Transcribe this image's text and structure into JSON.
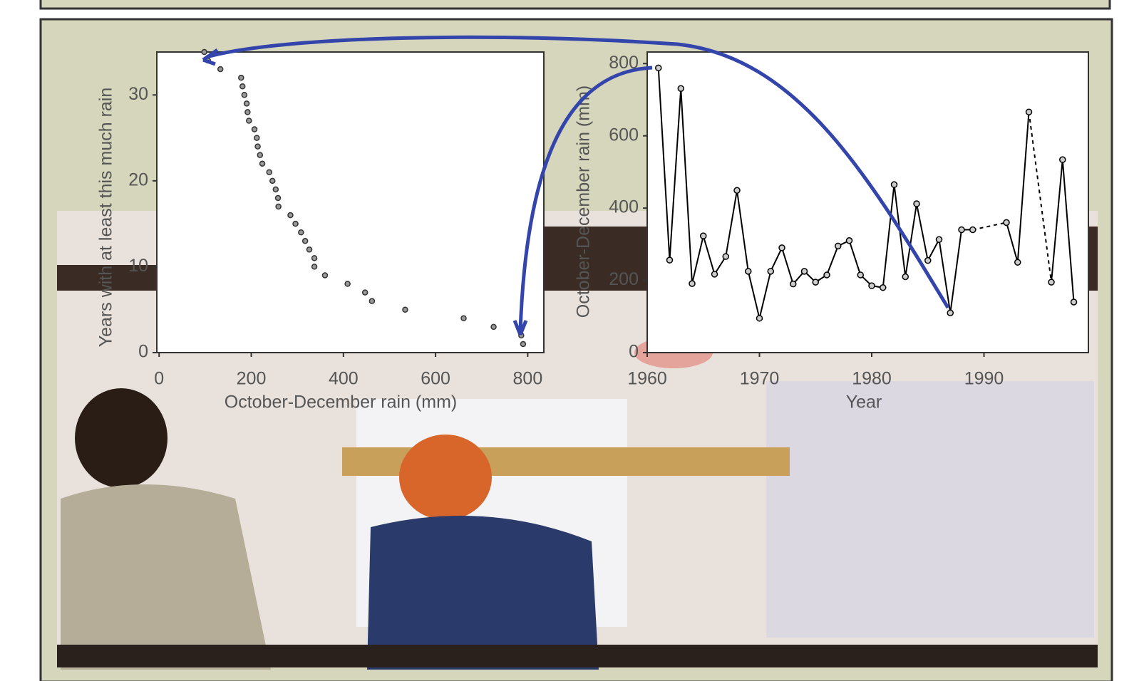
{
  "chart_data": [
    {
      "type": "scatter",
      "x_label": "October-December rain (mm)",
      "y_label": "Years with at least this much rain",
      "x": [
        98,
        106,
        133,
        178,
        181,
        185,
        190,
        192,
        195,
        207,
        212,
        214,
        219,
        224,
        239,
        246,
        253,
        258,
        259,
        285,
        296,
        308,
        317,
        326,
        337,
        337,
        360,
        409,
        447,
        462,
        534,
        661,
        726,
        786,
        790
      ],
      "values": [
        35,
        34,
        33,
        32,
        31,
        30,
        29,
        28,
        27,
        26,
        25,
        24,
        23,
        22,
        21,
        20,
        19,
        18,
        17,
        16,
        15,
        14,
        13,
        12,
        11,
        10,
        9,
        8,
        7,
        6,
        5,
        4,
        3,
        2,
        1
      ],
      "color": "#333333",
      "xlim": [
        -5,
        835
      ],
      "ylim": [
        0,
        35
      ],
      "xticks": [
        0,
        200,
        400,
        600,
        800
      ],
      "yticks": [
        0,
        10,
        20,
        30
      ]
    },
    {
      "type": "line",
      "x_label": "Year",
      "y_label": "October-December rain (mm)",
      "x": [
        1961,
        1962,
        1963,
        1964,
        1965,
        1966,
        1967,
        1968,
        1969,
        1970,
        1971,
        1972,
        1973,
        1974,
        1975,
        1976,
        1977,
        1978,
        1979,
        1980,
        1981,
        1982,
        1983,
        1984,
        1985,
        1986,
        1987,
        1988,
        1989,
        1990,
        1991,
        1992,
        1993,
        1994,
        1995,
        1996,
        1997,
        1998
      ],
      "values": [
        788,
        256,
        731,
        191,
        323,
        217,
        266,
        449,
        225,
        95,
        225,
        290,
        190,
        225,
        195,
        215,
        295,
        310,
        215,
        185,
        180,
        465,
        210,
        412,
        255,
        313,
        110,
        340,
        340,
        null,
        null,
        360,
        250,
        666,
        null,
        195,
        534,
        140
      ],
      "color": "#000000",
      "xlim": [
        1960,
        1999.3
      ],
      "ylim": [
        0,
        832
      ],
      "xticks": [
        1960,
        1970,
        1980,
        1990
      ],
      "yticks": [
        0,
        200,
        400,
        600,
        800
      ]
    }
  ]
}
